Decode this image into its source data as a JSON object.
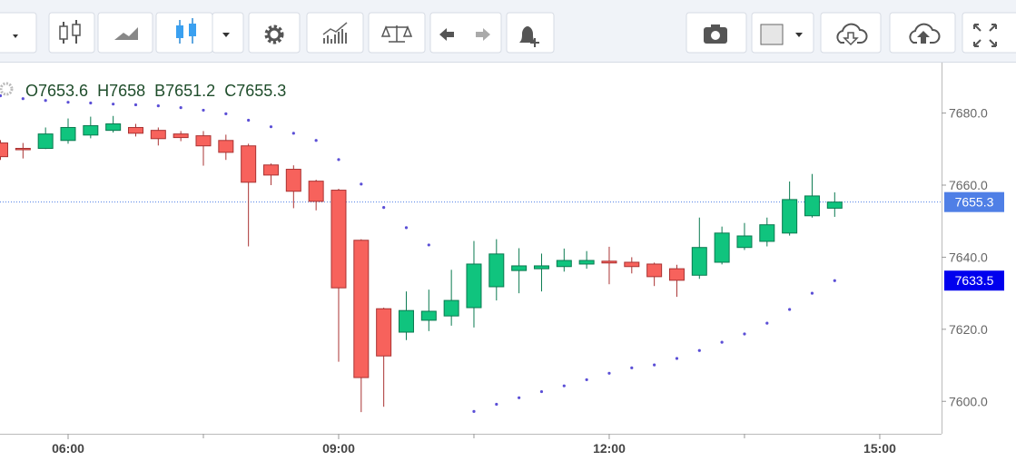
{
  "chart_data": {
    "type": "candlestick",
    "x": [
      5.25,
      5.5,
      5.75,
      6.0,
      6.25,
      6.5,
      6.75,
      7.0,
      7.25,
      7.5,
      7.75,
      8.0,
      8.25,
      8.5,
      8.75,
      9.0,
      9.25,
      9.5,
      9.75,
      10.0,
      10.25,
      10.5,
      10.75,
      11.0,
      11.25,
      11.5,
      11.75,
      12.0,
      12.25,
      12.5,
      12.75,
      13.0,
      13.25,
      13.5,
      13.75,
      14.0,
      14.25,
      14.5
    ],
    "open": [
      7671.7,
      7670.2,
      7670.2,
      7672.4,
      7673.9,
      7675.2,
      7676.0,
      7675.2,
      7674.2,
      7673.7,
      7672.4,
      7670.9,
      7665.6,
      7664.4,
      7661.1,
      7658.6,
      7644.7,
      7625.7,
      7619.2,
      7622.5,
      7623.7,
      7626.0,
      7631.8,
      7636.3,
      7636.8,
      7637.4,
      7638.1,
      7638.9,
      7638.6,
      7638.1,
      7636.8,
      7635.0,
      7638.6,
      7642.7,
      7644.4,
      7646.7,
      7651.5,
      7653.6
    ],
    "high": [
      7672.5,
      7671.7,
      7676.0,
      7678.5,
      7679.0,
      7679.2,
      7677.0,
      7676.0,
      7675.0,
      7675.0,
      7674.0,
      7671.5,
      7666.0,
      7665.5,
      7661.5,
      7659.0,
      7645.0,
      7626.0,
      7630.5,
      7631.0,
      7636.5,
      7644.5,
      7645.0,
      7642.5,
      7641.0,
      7642.4,
      7641.7,
      7642.9,
      7640.0,
      7638.5,
      7637.9,
      7651.0,
      7648.5,
      7649.5,
      7651.0,
      7661.0,
      7663.1,
      7658.0
    ],
    "low": [
      7667.0,
      7667.4,
      7670.0,
      7671.5,
      7673.0,
      7674.6,
      7673.5,
      7671.0,
      7672.2,
      7665.4,
      7667.0,
      7643.0,
      7660.0,
      7653.6,
      7653.0,
      7611.0,
      7597.0,
      7598.5,
      7617.0,
      7619.5,
      7621.0,
      7620.5,
      7628.0,
      7630.0,
      7630.5,
      7636.0,
      7636.8,
      7632.5,
      7635.5,
      7632.0,
      7629.0,
      7634.0,
      7638.0,
      7642.0,
      7643.0,
      7646.0,
      7651.0,
      7651.2
    ],
    "close": [
      7667.9,
      7670.0,
      7674.2,
      7676.0,
      7676.5,
      7677.0,
      7674.4,
      7672.9,
      7673.2,
      7670.9,
      7669.1,
      7660.8,
      7662.8,
      7658.3,
      7655.5,
      7631.5,
      7606.6,
      7612.6,
      7625.2,
      7625.0,
      7628.0,
      7638.1,
      7640.9,
      7637.6,
      7637.6,
      7639.1,
      7639.1,
      7638.4,
      7637.4,
      7634.6,
      7633.6,
      7642.7,
      7646.7,
      7645.9,
      7649.0,
      7656.0,
      7657.0,
      7655.3
    ],
    "sar": [
      7684.8,
      7684.0,
      7683.5,
      7683.0,
      7682.8,
      7682.5,
      7682.3,
      7682.0,
      7681.5,
      7680.8,
      7679.8,
      7678.0,
      7676.2,
      7674.4,
      7672.4,
      7667.1,
      7660.3,
      7653.8,
      7648.2,
      7643.4,
      null,
      7597.2,
      7599.2,
      7601.0,
      7602.7,
      7604.3,
      7606.0,
      7607.8,
      7609.3,
      7610.1,
      7611.9,
      7614.1,
      7616.4,
      7618.7,
      7621.7,
      7625.5,
      7630.0,
      7633.5
    ],
    "up_color": "#10c47e",
    "down_color": "#f7625c",
    "sar_color": "#5b4fd6",
    "header_labels": [
      "O",
      "H",
      "B",
      "C"
    ],
    "xlim": [
      5.245,
      15.685
    ],
    "xticks": [
      {
        "value": 6,
        "label": "06:00"
      },
      {
        "value": 9,
        "label": "09:00"
      },
      {
        "value": 12,
        "label": "12:00"
      },
      {
        "value": 15,
        "label": "15:00"
      }
    ],
    "xminorticks": [
      7.5,
      10.5,
      13.5
    ],
    "ylim": [
      7591,
      7694
    ],
    "yticks": [
      {
        "value": 7600,
        "label": "7600.0"
      },
      {
        "value": 7620,
        "label": "7620.0"
      },
      {
        "value": 7640,
        "label": "7640.0"
      },
      {
        "value": 7660,
        "label": "7660.0"
      },
      {
        "value": 7680,
        "label": "7680.0"
      }
    ]
  }
}
